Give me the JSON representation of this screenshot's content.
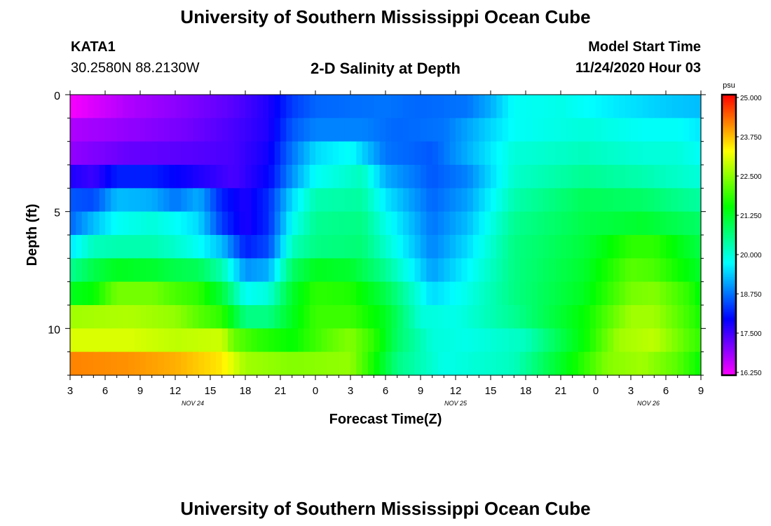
{
  "header": {
    "title": "University of Southern Mississippi Ocean Cube",
    "station_name": "KATA1",
    "station_coords": "30.2580N 88.2130W",
    "plot_title": "2-D Salinity at Depth",
    "model_start_label": "Model Start Time",
    "model_start_value": "11/24/2020 Hour 03"
  },
  "footer": {
    "title": "University of Southern Mississippi Ocean Cube"
  },
  "chart_data": {
    "type": "heatmap",
    "title": "2-D Salinity at Depth",
    "xlabel": "Forecast Time(Z)",
    "ylabel": "Depth (ft)",
    "x_tick_labels": [
      "3",
      "6",
      "9",
      "12",
      "15",
      "18",
      "21",
      "0",
      "3",
      "6",
      "9",
      "12",
      "15",
      "18",
      "21",
      "0",
      "3",
      "6",
      "9"
    ],
    "x_date_labels": [
      {
        "label": "NOV 24",
        "at_hour": 13.5
      },
      {
        "label": "NOV 25",
        "at_hour": 36
      },
      {
        "label": "NOV 26",
        "at_hour": 52.5
      }
    ],
    "x_range_hours": [
      3,
      57
    ],
    "y_ticks": [
      0,
      5,
      10
    ],
    "y_range_ft": [
      0,
      12
    ],
    "depth_layers_ft": [
      0.5,
      1.5,
      2.5,
      3.5,
      4.5,
      5.5,
      6.5,
      7.5,
      8.5,
      9.5,
      10.5,
      11.5
    ],
    "colorbar": {
      "unit": "psu",
      "min": 16.25,
      "max": 25.0,
      "tick_labels": [
        "25.000",
        "23.750",
        "22.500",
        "21.250",
        "20.000",
        "18.750",
        "17.500",
        "16.250"
      ]
    },
    "salinity_psu_layers": [
      {
        "depth_ft": 0.5,
        "points": [
          [
            3,
            16.3
          ],
          [
            8,
            16.8
          ],
          [
            13,
            17.1
          ],
          [
            17,
            17.4
          ],
          [
            20,
            17.8
          ],
          [
            22,
            18.4
          ],
          [
            24,
            18.7
          ],
          [
            30,
            18.8
          ],
          [
            33,
            18.7
          ],
          [
            37,
            18.8
          ],
          [
            39,
            19.2
          ],
          [
            41,
            19.8
          ],
          [
            45,
            19.9
          ],
          [
            50,
            19.6
          ],
          [
            54,
            19.4
          ],
          [
            57,
            19.3
          ]
        ]
      },
      {
        "depth_ft": 1.5,
        "points": [
          [
            3,
            16.8
          ],
          [
            8,
            17.0
          ],
          [
            13,
            17.2
          ],
          [
            17,
            17.5
          ],
          [
            20,
            17.8
          ],
          [
            22,
            18.6
          ],
          [
            24,
            18.9
          ],
          [
            28,
            18.9
          ],
          [
            31,
            18.7
          ],
          [
            35,
            18.8
          ],
          [
            38,
            19.3
          ],
          [
            41,
            19.8
          ],
          [
            47,
            20.0
          ],
          [
            52,
            19.8
          ],
          [
            55,
            19.8
          ],
          [
            57,
            19.6
          ]
        ]
      },
      {
        "depth_ft": 2.5,
        "points": [
          [
            3,
            17.0
          ],
          [
            8,
            17.3
          ],
          [
            13,
            17.4
          ],
          [
            17,
            17.5
          ],
          [
            20,
            17.9
          ],
          [
            22,
            18.8
          ],
          [
            24,
            19.5
          ],
          [
            27,
            19.8
          ],
          [
            30,
            18.8
          ],
          [
            34,
            18.6
          ],
          [
            38,
            19.4
          ],
          [
            41,
            20.0
          ],
          [
            47,
            20.2
          ],
          [
            52,
            20.0
          ],
          [
            55,
            20.0
          ],
          [
            57,
            19.8
          ]
        ]
      },
      {
        "depth_ft": 3.5,
        "points": [
          [
            3,
            17.8
          ],
          [
            5,
            17.6
          ],
          [
            7,
            18.2
          ],
          [
            10,
            18.2
          ],
          [
            13,
            17.9
          ],
          [
            17,
            17.5
          ],
          [
            20,
            18.0
          ],
          [
            22,
            19.0
          ],
          [
            24,
            19.8
          ],
          [
            28,
            20.2
          ],
          [
            30,
            19.2
          ],
          [
            34,
            18.6
          ],
          [
            37,
            18.9
          ],
          [
            41,
            20.1
          ],
          [
            47,
            20.5
          ],
          [
            52,
            20.3
          ],
          [
            57,
            20.0
          ]
        ]
      },
      {
        "depth_ft": 4.5,
        "points": [
          [
            3,
            18.6
          ],
          [
            5,
            18.5
          ],
          [
            7,
            19.3
          ],
          [
            10,
            19.2
          ],
          [
            12,
            18.8
          ],
          [
            14,
            19.2
          ],
          [
            16,
            18.2
          ],
          [
            18,
            17.8
          ],
          [
            20,
            18.3
          ],
          [
            22,
            19.5
          ],
          [
            24,
            20.3
          ],
          [
            28,
            20.4
          ],
          [
            30,
            19.6
          ],
          [
            34,
            18.7
          ],
          [
            37,
            19.1
          ],
          [
            41,
            20.3
          ],
          [
            47,
            20.9
          ],
          [
            52,
            20.8
          ],
          [
            57,
            20.4
          ]
        ]
      },
      {
        "depth_ft": 5.5,
        "points": [
          [
            3,
            18.7
          ],
          [
            5,
            19.3
          ],
          [
            7,
            19.8
          ],
          [
            10,
            20.0
          ],
          [
            12,
            19.8
          ],
          [
            14,
            19.5
          ],
          [
            16,
            18.4
          ],
          [
            18,
            17.8
          ],
          [
            20,
            18.3
          ],
          [
            22,
            19.8
          ],
          [
            24,
            20.5
          ],
          [
            28,
            20.6
          ],
          [
            30,
            19.9
          ],
          [
            34,
            18.8
          ],
          [
            37,
            19.3
          ],
          [
            41,
            20.5
          ],
          [
            47,
            21.0
          ],
          [
            52,
            21.2
          ],
          [
            57,
            20.8
          ]
        ]
      },
      {
        "depth_ft": 6.5,
        "points": [
          [
            3,
            19.6
          ],
          [
            5,
            20.2
          ],
          [
            7,
            20.3
          ],
          [
            10,
            20.3
          ],
          [
            12,
            20.1
          ],
          [
            14,
            19.8
          ],
          [
            16,
            19.3
          ],
          [
            18,
            18.2
          ],
          [
            20,
            18.5
          ],
          [
            22,
            20.2
          ],
          [
            24,
            20.6
          ],
          [
            28,
            20.7
          ],
          [
            30,
            20.1
          ],
          [
            34,
            18.9
          ],
          [
            37,
            19.5
          ],
          [
            41,
            20.6
          ],
          [
            47,
            21.1
          ],
          [
            51,
            21.8
          ],
          [
            53,
            21.8
          ],
          [
            57,
            21.0
          ]
        ]
      },
      {
        "depth_ft": 7.5,
        "points": [
          [
            3,
            20.5
          ],
          [
            5,
            21.0
          ],
          [
            7,
            21.3
          ],
          [
            10,
            21.2
          ],
          [
            12,
            21.0
          ],
          [
            14,
            20.9
          ],
          [
            16,
            20.3
          ],
          [
            18,
            19.0
          ],
          [
            20,
            19.2
          ],
          [
            22,
            20.8
          ],
          [
            24,
            21.3
          ],
          [
            27,
            21.2
          ],
          [
            30,
            20.5
          ],
          [
            34,
            19.1
          ],
          [
            37,
            19.7
          ],
          [
            41,
            20.6
          ],
          [
            47,
            21.2
          ],
          [
            51,
            22.1
          ],
          [
            53,
            22.0
          ],
          [
            57,
            21.2
          ]
        ]
      },
      {
        "depth_ft": 8.5,
        "points": [
          [
            3,
            21.3
          ],
          [
            5,
            21.5
          ],
          [
            7,
            22.3
          ],
          [
            10,
            22.3
          ],
          [
            12,
            22.0
          ],
          [
            14,
            21.8
          ],
          [
            16,
            21.1
          ],
          [
            18,
            19.8
          ],
          [
            20,
            20.0
          ],
          [
            22,
            21.2
          ],
          [
            24,
            21.8
          ],
          [
            27,
            21.7
          ],
          [
            30,
            21.0
          ],
          [
            34,
            19.5
          ],
          [
            37,
            19.9
          ],
          [
            41,
            20.6
          ],
          [
            47,
            21.3
          ],
          [
            51,
            22.3
          ],
          [
            53,
            22.4
          ],
          [
            56,
            21.8
          ],
          [
            57,
            21.4
          ]
        ]
      },
      {
        "depth_ft": 9.5,
        "points": [
          [
            3,
            22.6
          ],
          [
            8,
            22.7
          ],
          [
            12,
            22.5
          ],
          [
            14,
            22.1
          ],
          [
            16,
            21.8
          ],
          [
            18,
            20.6
          ],
          [
            20,
            20.6
          ],
          [
            22,
            21.3
          ],
          [
            24,
            21.9
          ],
          [
            27,
            21.9
          ],
          [
            30,
            21.3
          ],
          [
            33,
            20.0
          ],
          [
            36,
            19.9
          ],
          [
            41,
            20.5
          ],
          [
            47,
            21.5
          ],
          [
            51,
            22.6
          ],
          [
            53,
            22.6
          ],
          [
            56,
            21.9
          ],
          [
            57,
            21.6
          ]
        ]
      },
      {
        "depth_ft": 10.5,
        "points": [
          [
            3,
            23.0
          ],
          [
            8,
            23.0
          ],
          [
            12,
            22.8
          ],
          [
            16,
            22.9
          ],
          [
            17,
            22.2
          ],
          [
            19,
            21.8
          ],
          [
            22,
            21.5
          ],
          [
            25,
            22.1
          ],
          [
            27,
            22.4
          ],
          [
            29,
            21.8
          ],
          [
            31,
            20.8
          ],
          [
            34,
            20.0
          ],
          [
            37,
            19.9
          ],
          [
            42,
            20.2
          ],
          [
            47,
            21.5
          ],
          [
            50,
            22.6
          ],
          [
            53,
            22.8
          ],
          [
            55,
            22.3
          ],
          [
            57,
            21.8
          ]
        ]
      },
      {
        "depth_ft": 11.5,
        "points": [
          [
            3,
            24.1
          ],
          [
            8,
            24.0
          ],
          [
            12,
            23.8
          ],
          [
            16,
            23.4
          ],
          [
            18,
            22.6
          ],
          [
            22,
            22.4
          ],
          [
            27,
            22.5
          ],
          [
            29,
            21.6
          ],
          [
            31,
            20.6
          ],
          [
            35,
            19.9
          ],
          [
            41,
            20.2
          ],
          [
            46,
            21.5
          ],
          [
            49,
            22.4
          ],
          [
            52,
            22.6
          ],
          [
            55,
            22.1
          ],
          [
            57,
            21.5
          ]
        ]
      }
    ]
  }
}
